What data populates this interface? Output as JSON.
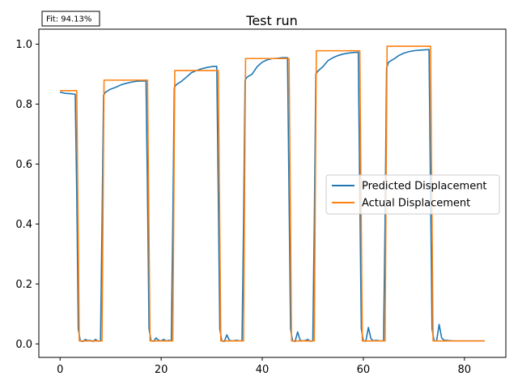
{
  "chart_data": {
    "type": "line",
    "title": "Test run",
    "xlabel": "",
    "ylabel": "",
    "xlim": [
      -4.2,
      88.2
    ],
    "ylim": [
      -0.045,
      1.05
    ],
    "xticks": [
      0,
      20,
      40,
      60,
      80
    ],
    "yticks": [
      0.0,
      0.2,
      0.4,
      0.6,
      0.8,
      1.0
    ],
    "xtick_labels": [
      "0",
      "20",
      "40",
      "60",
      "80"
    ],
    "ytick_labels": [
      "0.0",
      "0.2",
      "0.4",
      "0.6",
      "0.8",
      "1.0"
    ],
    "grid": false,
    "legend_position": "center-right",
    "annotation": "Fit: 94.13%",
    "series": [
      {
        "name": "Predicted Displacement",
        "color": "#1f77b4",
        "x": [
          0,
          1,
          2,
          3,
          3.3,
          3.6,
          4,
          4.5,
          5,
          5.5,
          6,
          6.5,
          7,
          7.5,
          8,
          8.3,
          8.6,
          9,
          10,
          11,
          12,
          13,
          14,
          15,
          16,
          17,
          17.3,
          17.6,
          18,
          18.5,
          19,
          19.5,
          20,
          20.5,
          21,
          21.5,
          22,
          22.3,
          22.6,
          23,
          24,
          25,
          26,
          27,
          28,
          29,
          30,
          31,
          31.3,
          31.6,
          32,
          32.5,
          33,
          33.5,
          34,
          34.5,
          35,
          35.5,
          36,
          36.3,
          36.6,
          37,
          38,
          39,
          40,
          41,
          42,
          43,
          44,
          45,
          45.3,
          45.6,
          46,
          46.5,
          47,
          47.5,
          48,
          48.5,
          49,
          49.5,
          50,
          50.3,
          50.6,
          51,
          52,
          53,
          54,
          55,
          56,
          57,
          58,
          59,
          59.3,
          59.6,
          60,
          60.5,
          61,
          61.5,
          62,
          62.5,
          63,
          63.5,
          64,
          64.3,
          64.6,
          65,
          66,
          67,
          68,
          69,
          70,
          71,
          72,
          73,
          73.3,
          73.6,
          74,
          74.5,
          75,
          75.5,
          76,
          76.5,
          77,
          78,
          80,
          82,
          84
        ],
        "y": [
          0.84,
          0.836,
          0.835,
          0.833,
          0.5,
          0.05,
          0.01,
          0.008,
          0.015,
          0.011,
          0.012,
          0.008,
          0.015,
          0.009,
          0.01,
          0.4,
          0.83,
          0.84,
          0.85,
          0.856,
          0.864,
          0.869,
          0.873,
          0.876,
          0.877,
          0.877,
          0.5,
          0.05,
          0.01,
          0.009,
          0.02,
          0.012,
          0.01,
          0.015,
          0.01,
          0.012,
          0.01,
          0.4,
          0.855,
          0.865,
          0.876,
          0.89,
          0.905,
          0.912,
          0.918,
          0.922,
          0.925,
          0.926,
          0.5,
          0.05,
          0.01,
          0.008,
          0.03,
          0.012,
          0.01,
          0.011,
          0.012,
          0.01,
          0.01,
          0.4,
          0.88,
          0.89,
          0.9,
          0.925,
          0.94,
          0.948,
          0.952,
          0.953,
          0.955,
          0.955,
          0.5,
          0.05,
          0.01,
          0.008,
          0.04,
          0.012,
          0.01,
          0.011,
          0.015,
          0.009,
          0.01,
          0.4,
          0.9,
          0.91,
          0.925,
          0.945,
          0.955,
          0.962,
          0.967,
          0.97,
          0.972,
          0.973,
          0.5,
          0.05,
          0.01,
          0.009,
          0.055,
          0.018,
          0.01,
          0.012,
          0.011,
          0.01,
          0.01,
          0.4,
          0.92,
          0.94,
          0.95,
          0.962,
          0.97,
          0.975,
          0.978,
          0.98,
          0.981,
          0.982,
          0.5,
          0.05,
          0.01,
          0.01,
          0.065,
          0.02,
          0.012,
          0.012,
          0.011,
          0.01,
          0.01,
          0.01,
          0.01
        ]
      },
      {
        "name": "Actual Displacement",
        "color": "#ff7f0e",
        "x": [
          0,
          3.3,
          3.8,
          8.3,
          8.7,
          17.3,
          17.8,
          22.3,
          22.7,
          31.3,
          31.8,
          36.3,
          36.7,
          45.3,
          45.8,
          50.3,
          50.7,
          59.3,
          59.8,
          64.3,
          64.7,
          73.3,
          73.8,
          84
        ],
        "y": [
          0.845,
          0.845,
          0.01,
          0.01,
          0.88,
          0.88,
          0.01,
          0.01,
          0.912,
          0.912,
          0.01,
          0.01,
          0.952,
          0.952,
          0.01,
          0.01,
          0.978,
          0.978,
          0.01,
          0.01,
          0.993,
          0.993,
          0.01,
          0.01
        ]
      }
    ]
  }
}
